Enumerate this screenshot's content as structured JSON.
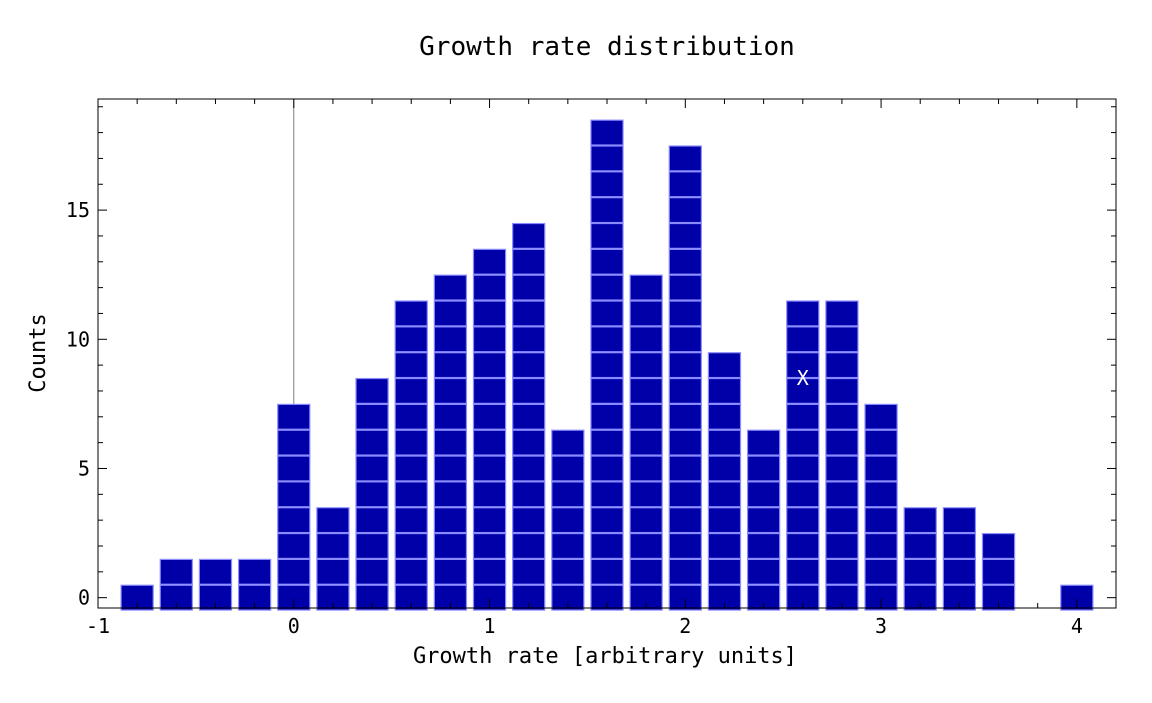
{
  "chart_data": {
    "type": "bar",
    "style": "stacked unit squares (dot histogram)",
    "title": "Growth rate distribution",
    "xlabel": "Growth rate [arbitrary units]",
    "ylabel": "Counts",
    "xlim": [
      -1,
      4.2
    ],
    "ylim": [
      -0.4,
      19.3
    ],
    "bin_width": 0.2,
    "x_ticks": [
      -1,
      0,
      1,
      2,
      3,
      4
    ],
    "x_tick_labels": [
      "-1",
      "0",
      "1",
      "2",
      "3",
      "4"
    ],
    "y_ticks": [
      0,
      5,
      10,
      15
    ],
    "y_tick_labels": [
      "0",
      "5",
      "10",
      "15"
    ],
    "zero_line": true,
    "grid": false,
    "legend": "none",
    "x": [
      -0.8,
      -0.6,
      -0.4,
      -0.2,
      0.0,
      0.2,
      0.4,
      0.6,
      0.8,
      1.0,
      1.2,
      1.4,
      1.6,
      1.8,
      2.0,
      2.2,
      2.4,
      2.6,
      2.8,
      3.0,
      3.2,
      3.4,
      3.6,
      4.0
    ],
    "values": [
      1,
      2,
      2,
      2,
      8,
      4,
      9,
      12,
      13,
      14,
      15,
      7,
      19,
      13,
      18,
      10,
      7,
      12,
      12,
      8,
      4,
      4,
      3,
      1
    ],
    "marker": {
      "label": "X",
      "x": 2.6,
      "count": 9
    },
    "colors": {
      "box_fill": "#0000a8",
      "box_edge": "#8b8bff",
      "axes": "#000000",
      "zero_line": "#808080",
      "marker_text": "#ffffff"
    }
  }
}
